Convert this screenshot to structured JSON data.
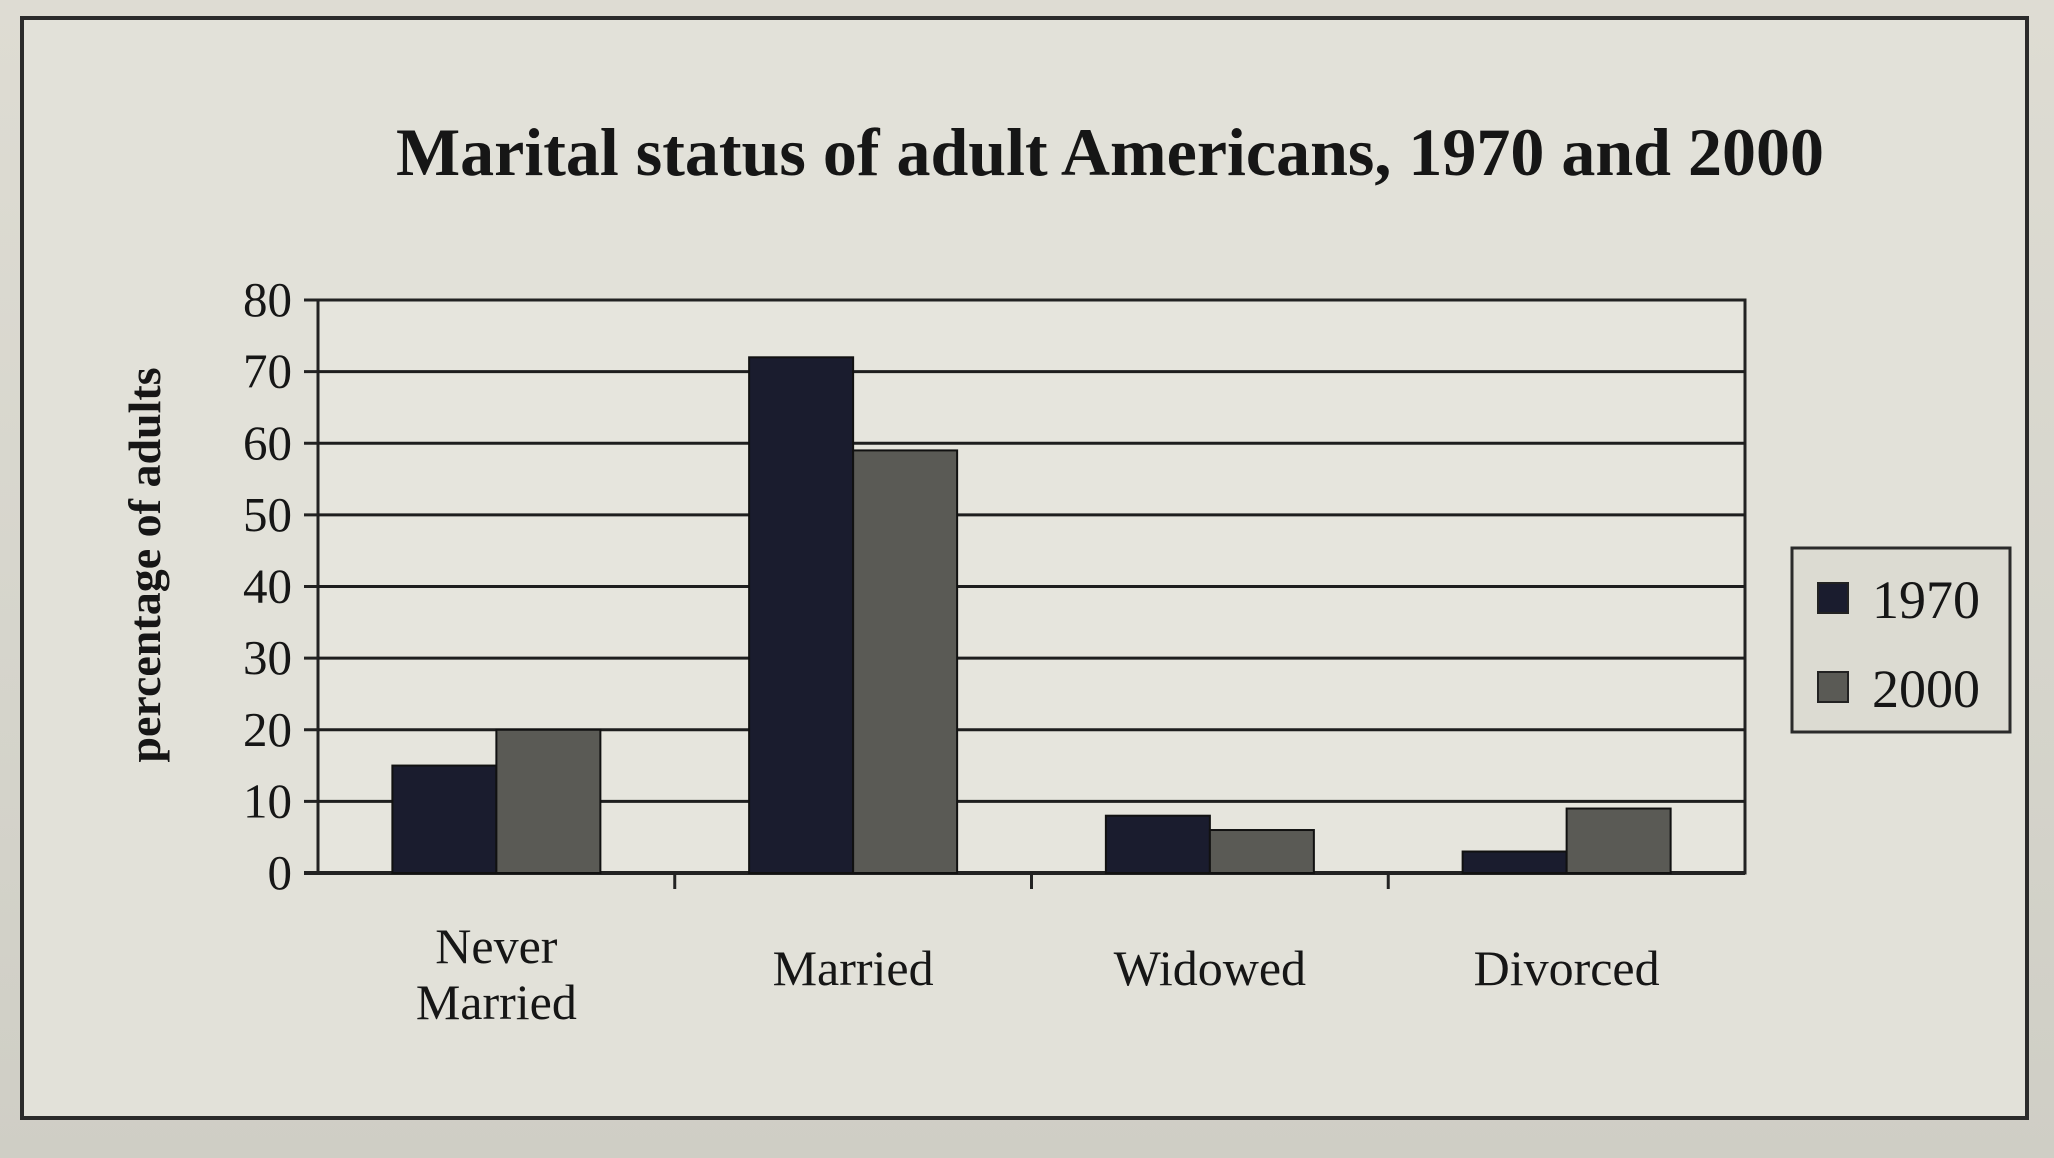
{
  "colors": {
    "background": "#d9d8cf",
    "frame": "#2b2b2b",
    "gridline": "#1e1e1e",
    "text": "#161616"
  },
  "chart_data": {
    "type": "bar",
    "title": "Marital status of adult Americans, 1970 and 2000",
    "xlabel": "",
    "ylabel": "percentage of adults",
    "ylim": [
      0,
      80
    ],
    "yticks": [
      0,
      10,
      20,
      30,
      40,
      50,
      60,
      70,
      80
    ],
    "categories": [
      "Never\nMarried",
      "Married",
      "Widowed",
      "Divorced"
    ],
    "series": [
      {
        "name": "1970",
        "color": "#1a1c2e",
        "values": [
          15,
          72,
          8,
          3
        ]
      },
      {
        "name": "2000",
        "color": "#5a5a55",
        "values": [
          20,
          59,
          6,
          9
        ]
      }
    ],
    "grid": true,
    "legend_position": "right"
  }
}
